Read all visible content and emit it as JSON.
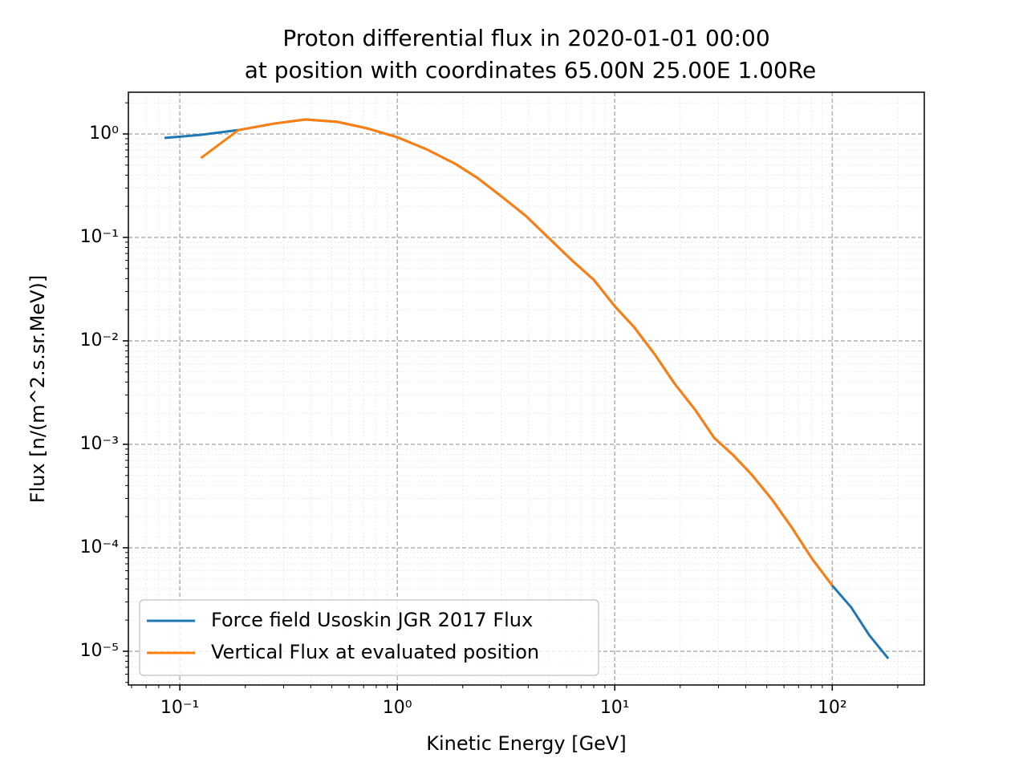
{
  "chart_data": {
    "type": "line",
    "title": [
      "Proton differential flux in 2020-01-01 00:00",
      "at position with coordinates 65.00N 25.00E 1.00Re"
    ],
    "x_label": "Kinetic Energy [GeV]",
    "y_label": "Flux [n/(m^2.s.sr.MeV)]",
    "x": [
      0.085,
      0.125,
      0.186,
      0.272,
      0.376,
      0.529,
      0.73,
      1.0,
      1.36,
      1.84,
      2.34,
      3.02,
      3.89,
      4.94,
      6.32,
      8.02,
      10.0,
      12.3,
      15.2,
      18.8,
      23.4,
      28.7,
      34.9,
      42.7,
      52.9,
      65.3,
      80.9,
      100,
      122,
      148,
      181
    ],
    "series": [
      {
        "name": "Force field Usoskin JGR 2017 Flux",
        "color": "#1f77b4",
        "values": [
          0.914,
          0.98,
          1.09,
          1.26,
          1.38,
          1.31,
          1.13,
          0.93,
          0.713,
          0.517,
          0.375,
          0.248,
          0.162,
          0.1,
          0.0607,
          0.0388,
          0.0216,
          0.0135,
          0.0075,
          0.00388,
          0.00216,
          0.00115,
          0.000793,
          0.000507,
          0.000292,
          0.000156,
          7.79e-05,
          4.32e-05,
          2.67e-05,
          1.43e-05,
          8.5e-06
        ]
      },
      {
        "name": "Vertical Flux at evaluated position",
        "color": "#ff7f0e",
        "values": [
          null,
          0.585,
          1.09,
          1.26,
          1.38,
          1.31,
          1.13,
          0.93,
          0.713,
          0.517,
          0.375,
          0.248,
          0.162,
          0.1,
          0.0607,
          0.0388,
          0.0216,
          0.0135,
          0.0075,
          0.00388,
          0.00216,
          0.00115,
          0.000793,
          0.000507,
          0.000292,
          0.000156,
          7.79e-05,
          4.32e-05,
          null,
          null,
          null
        ]
      }
    ],
    "xscale": "log",
    "yscale": "log",
    "xlim": [
      0.058,
      265
    ],
    "ylim": [
      4.72e-06,
      2.53
    ],
    "xticks": [
      {
        "value": 0.1,
        "label": "10⁻¹"
      },
      {
        "value": 1,
        "label": "10⁰"
      },
      {
        "value": 10,
        "label": "10¹"
      },
      {
        "value": 100,
        "label": "10²"
      }
    ],
    "yticks": [
      {
        "value": 1e-05,
        "label": "10⁻⁵"
      },
      {
        "value": 0.0001,
        "label": "10⁻⁴"
      },
      {
        "value": 0.001,
        "label": "10⁻³"
      },
      {
        "value": 0.01,
        "label": "10⁻²"
      },
      {
        "value": 0.1,
        "label": "10⁻¹"
      },
      {
        "value": 1,
        "label": "10⁰"
      }
    ],
    "grid": true,
    "legend": "lower left"
  }
}
